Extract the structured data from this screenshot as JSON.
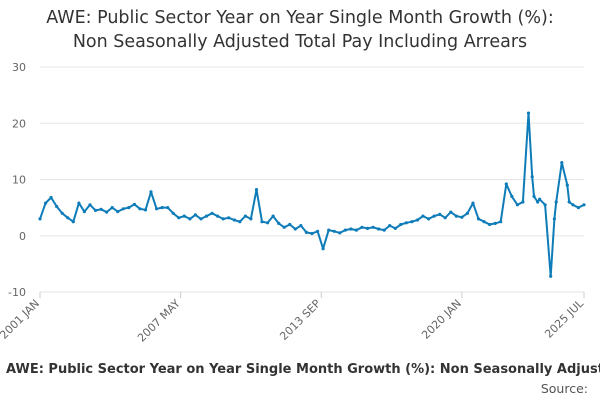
{
  "chart_data": {
    "type": "line",
    "title_line1": "AWE: Public Sector Year on Year Single Month Growth (%):",
    "title_line2": "Non Seasonally Adjusted Total Pay Including Arrears",
    "xlabel": "AWE: Public Sector Year on Year Single Month Growth (%): Non Seasonally Adjusted Total Pay Including Arrears",
    "source_label": "Source:",
    "ylim": [
      -10,
      30
    ],
    "yticks": [
      -10,
      0,
      10,
      20,
      30
    ],
    "x_start": "2001 JAN",
    "x_end": "2025 JUL",
    "xticks": [
      "2001 JAN",
      "2007 MAY",
      "2013 SEP",
      "2020 JAN",
      "2025 JUL"
    ],
    "grid": true,
    "series": [
      {
        "color": "#0e7cb8",
        "x": [
          "2001-01",
          "2001-04",
          "2001-07",
          "2001-10",
          "2002-01",
          "2002-04",
          "2002-07",
          "2002-10",
          "2003-01",
          "2003-04",
          "2003-07",
          "2003-10",
          "2004-01",
          "2004-04",
          "2004-07",
          "2004-10",
          "2005-01",
          "2005-04",
          "2005-07",
          "2005-10",
          "2006-01",
          "2006-04",
          "2006-07",
          "2006-10",
          "2007-01",
          "2007-04",
          "2007-07",
          "2007-10",
          "2008-01",
          "2008-04",
          "2008-07",
          "2008-10",
          "2009-01",
          "2009-04",
          "2009-07",
          "2009-10",
          "2010-01",
          "2010-04",
          "2010-07",
          "2010-10",
          "2011-01",
          "2011-04",
          "2011-07",
          "2011-10",
          "2012-01",
          "2012-04",
          "2012-07",
          "2012-10",
          "2013-01",
          "2013-04",
          "2013-07",
          "2013-10",
          "2014-01",
          "2014-04",
          "2014-07",
          "2014-10",
          "2015-01",
          "2015-04",
          "2015-07",
          "2015-10",
          "2016-01",
          "2016-04",
          "2016-07",
          "2016-10",
          "2017-01",
          "2017-04",
          "2017-07",
          "2017-10",
          "2018-01",
          "2018-04",
          "2018-07",
          "2018-10",
          "2019-01",
          "2019-04",
          "2019-07",
          "2019-10",
          "2020-01",
          "2020-04",
          "2020-07",
          "2020-10",
          "2021-01",
          "2021-04",
          "2021-07",
          "2021-10",
          "2022-01",
          "2022-04",
          "2022-07",
          "2022-10",
          "2023-01",
          "2023-03",
          "2023-04",
          "2023-06",
          "2023-07",
          "2023-10",
          "2024-01",
          "2024-03",
          "2024-04",
          "2024-07",
          "2024-10",
          "2024-11",
          "2025-01",
          "2025-04",
          "2025-07"
        ],
        "values": [
          3.0,
          5.8,
          6.8,
          5.2,
          4.0,
          3.2,
          2.5,
          5.8,
          4.3,
          5.5,
          4.5,
          4.7,
          4.2,
          5.0,
          4.3,
          4.8,
          5.0,
          5.6,
          4.8,
          4.6,
          7.8,
          4.8,
          5.0,
          5.0,
          4.0,
          3.2,
          3.5,
          3.0,
          3.7,
          3.0,
          3.5,
          4.0,
          3.5,
          3.0,
          3.2,
          2.8,
          2.5,
          3.5,
          3.0,
          8.2,
          2.5,
          2.3,
          3.5,
          2.2,
          1.5,
          2.0,
          1.2,
          1.8,
          0.6,
          0.4,
          0.8,
          -2.3,
          1.0,
          0.8,
          0.5,
          1.0,
          1.2,
          1.0,
          1.5,
          1.3,
          1.5,
          1.2,
          1.0,
          1.8,
          1.3,
          2.0,
          2.3,
          2.5,
          2.8,
          3.5,
          3.0,
          3.5,
          3.8,
          3.2,
          4.2,
          3.5,
          3.3,
          4.0,
          5.8,
          3.0,
          2.5,
          2.0,
          2.2,
          2.5,
          9.2,
          7.0,
          5.5,
          6.0,
          21.8,
          10.5,
          7.0,
          6.0,
          6.5,
          5.5,
          -7.2,
          3.0,
          6.0,
          13.0,
          9.0,
          6.0,
          5.5,
          5.0,
          5.5
        ]
      }
    ]
  }
}
